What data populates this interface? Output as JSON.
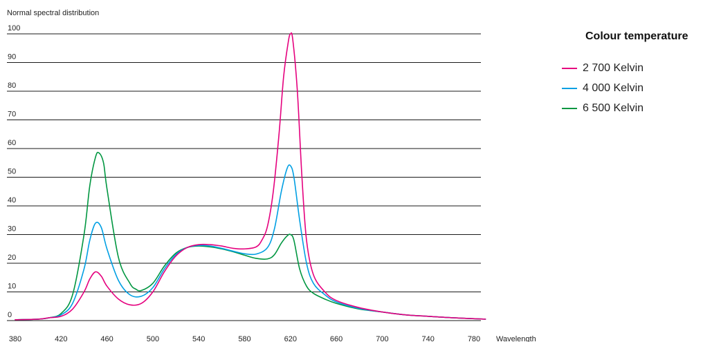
{
  "chart_data": {
    "type": "line",
    "title": "",
    "ylabel": "Normal spectral distribution",
    "xlabel": "Wavelength",
    "xlim": [
      380,
      790
    ],
    "ylim": [
      0,
      100
    ],
    "x_ticks": [
      "380",
      "420",
      "460",
      "500",
      "540",
      "580",
      "620",
      "660",
      "700",
      "740",
      "780"
    ],
    "y_ticks": [
      "0",
      "10",
      "20",
      "30",
      "40",
      "50",
      "60",
      "70",
      "80",
      "90",
      "100"
    ],
    "grid": "horizontal",
    "legend": {
      "title": "Colour temperature",
      "placement": "right"
    },
    "series": [
      {
        "name": "2 700 Kelvin",
        "color": "#e5007e",
        "points": [
          [
            380,
            0.3
          ],
          [
            400,
            0.5
          ],
          [
            410,
            1
          ],
          [
            420,
            1.5
          ],
          [
            430,
            4
          ],
          [
            440,
            10
          ],
          [
            445,
            14.5
          ],
          [
            450,
            17
          ],
          [
            455,
            15.5
          ],
          [
            460,
            12
          ],
          [
            470,
            7.5
          ],
          [
            480,
            5.5
          ],
          [
            490,
            6
          ],
          [
            500,
            10
          ],
          [
            510,
            17
          ],
          [
            520,
            22.5
          ],
          [
            530,
            25.5
          ],
          [
            540,
            26.5
          ],
          [
            550,
            26.5
          ],
          [
            560,
            26
          ],
          [
            570,
            25.2
          ],
          [
            580,
            25
          ],
          [
            590,
            25.7
          ],
          [
            595,
            28
          ],
          [
            600,
            33
          ],
          [
            605,
            45
          ],
          [
            610,
            65
          ],
          [
            614,
            85
          ],
          [
            618,
            97
          ],
          [
            620,
            100
          ],
          [
            622,
            98
          ],
          [
            626,
            80
          ],
          [
            630,
            50
          ],
          [
            634,
            28
          ],
          [
            640,
            16
          ],
          [
            650,
            10
          ],
          [
            660,
            7
          ],
          [
            680,
            4.5
          ],
          [
            700,
            3
          ],
          [
            720,
            2
          ],
          [
            740,
            1.5
          ],
          [
            760,
            1
          ],
          [
            790,
            0.5
          ]
        ]
      },
      {
        "name": "4 000 Kelvin",
        "color": "#009fe3",
        "points": [
          [
            380,
            0.3
          ],
          [
            400,
            0.5
          ],
          [
            410,
            1
          ],
          [
            420,
            2
          ],
          [
            430,
            6
          ],
          [
            440,
            18
          ],
          [
            445,
            28
          ],
          [
            450,
            34
          ],
          [
            455,
            32.5
          ],
          [
            460,
            25
          ],
          [
            470,
            14
          ],
          [
            480,
            9
          ],
          [
            490,
            8.5
          ],
          [
            500,
            11.5
          ],
          [
            510,
            18
          ],
          [
            520,
            23
          ],
          [
            530,
            25.5
          ],
          [
            540,
            26.2
          ],
          [
            550,
            26
          ],
          [
            560,
            25.2
          ],
          [
            570,
            24.2
          ],
          [
            580,
            23.3
          ],
          [
            590,
            23.2
          ],
          [
            600,
            25.5
          ],
          [
            606,
            32
          ],
          [
            612,
            45
          ],
          [
            617,
            53
          ],
          [
            620,
            54
          ],
          [
            623,
            50
          ],
          [
            628,
            35
          ],
          [
            634,
            20
          ],
          [
            640,
            13
          ],
          [
            650,
            9
          ],
          [
            660,
            6.5
          ],
          [
            680,
            4.2
          ],
          [
            700,
            3
          ],
          [
            720,
            2
          ],
          [
            740,
            1.5
          ],
          [
            760,
            1
          ],
          [
            790,
            0.5
          ]
        ]
      },
      {
        "name": "6 500 Kelvin",
        "color": "#009640",
        "points": [
          [
            380,
            0.3
          ],
          [
            400,
            0.5
          ],
          [
            410,
            1
          ],
          [
            420,
            2.5
          ],
          [
            430,
            9
          ],
          [
            440,
            30
          ],
          [
            445,
            47
          ],
          [
            450,
            57
          ],
          [
            453,
            58.5
          ],
          [
            457,
            55
          ],
          [
            460,
            46
          ],
          [
            470,
            22
          ],
          [
            480,
            13
          ],
          [
            485,
            11
          ],
          [
            490,
            10.5
          ],
          [
            500,
            13
          ],
          [
            510,
            19
          ],
          [
            520,
            23.5
          ],
          [
            530,
            25.5
          ],
          [
            540,
            26
          ],
          [
            550,
            25.7
          ],
          [
            560,
            25
          ],
          [
            570,
            24
          ],
          [
            580,
            22.8
          ],
          [
            590,
            21.7
          ],
          [
            600,
            21.5
          ],
          [
            606,
            23
          ],
          [
            612,
            27
          ],
          [
            617,
            29.5
          ],
          [
            620,
            30
          ],
          [
            623,
            28
          ],
          [
            628,
            18
          ],
          [
            634,
            12
          ],
          [
            640,
            9.5
          ],
          [
            650,
            7.5
          ],
          [
            660,
            6
          ],
          [
            680,
            4
          ],
          [
            700,
            3
          ],
          [
            720,
            2
          ],
          [
            740,
            1.5
          ],
          [
            760,
            1
          ],
          [
            790,
            0.5
          ]
        ]
      }
    ]
  }
}
